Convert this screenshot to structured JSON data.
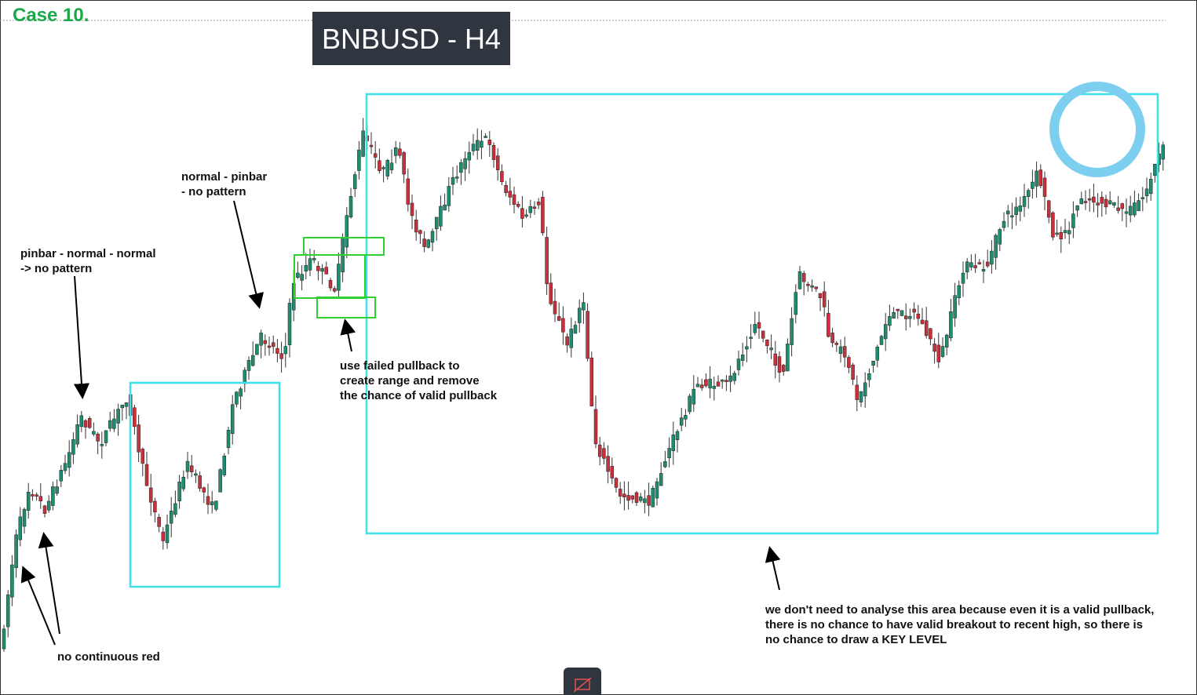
{
  "header": {
    "case_label": "Case 10.",
    "title": "BNBUSD - H4"
  },
  "annotations": [
    {
      "lines": [
        "pinbar - normal - normal",
        "-> no pattern"
      ]
    },
    {
      "lines": [
        "normal - pinbar",
        "- no pattern"
      ]
    },
    {
      "lines": [
        "use failed pullback to",
        "create range and remove",
        "the chance of valid pullback"
      ]
    },
    {
      "lines": [
        "no continuous red"
      ]
    },
    {
      "lines": [
        "we don't need to analyse this area because even it is a valid pullback,",
        "there is no chance to have valid breakout to recent high, so there is",
        "no chance to draw a KEY LEVEL"
      ]
    }
  ]
}
